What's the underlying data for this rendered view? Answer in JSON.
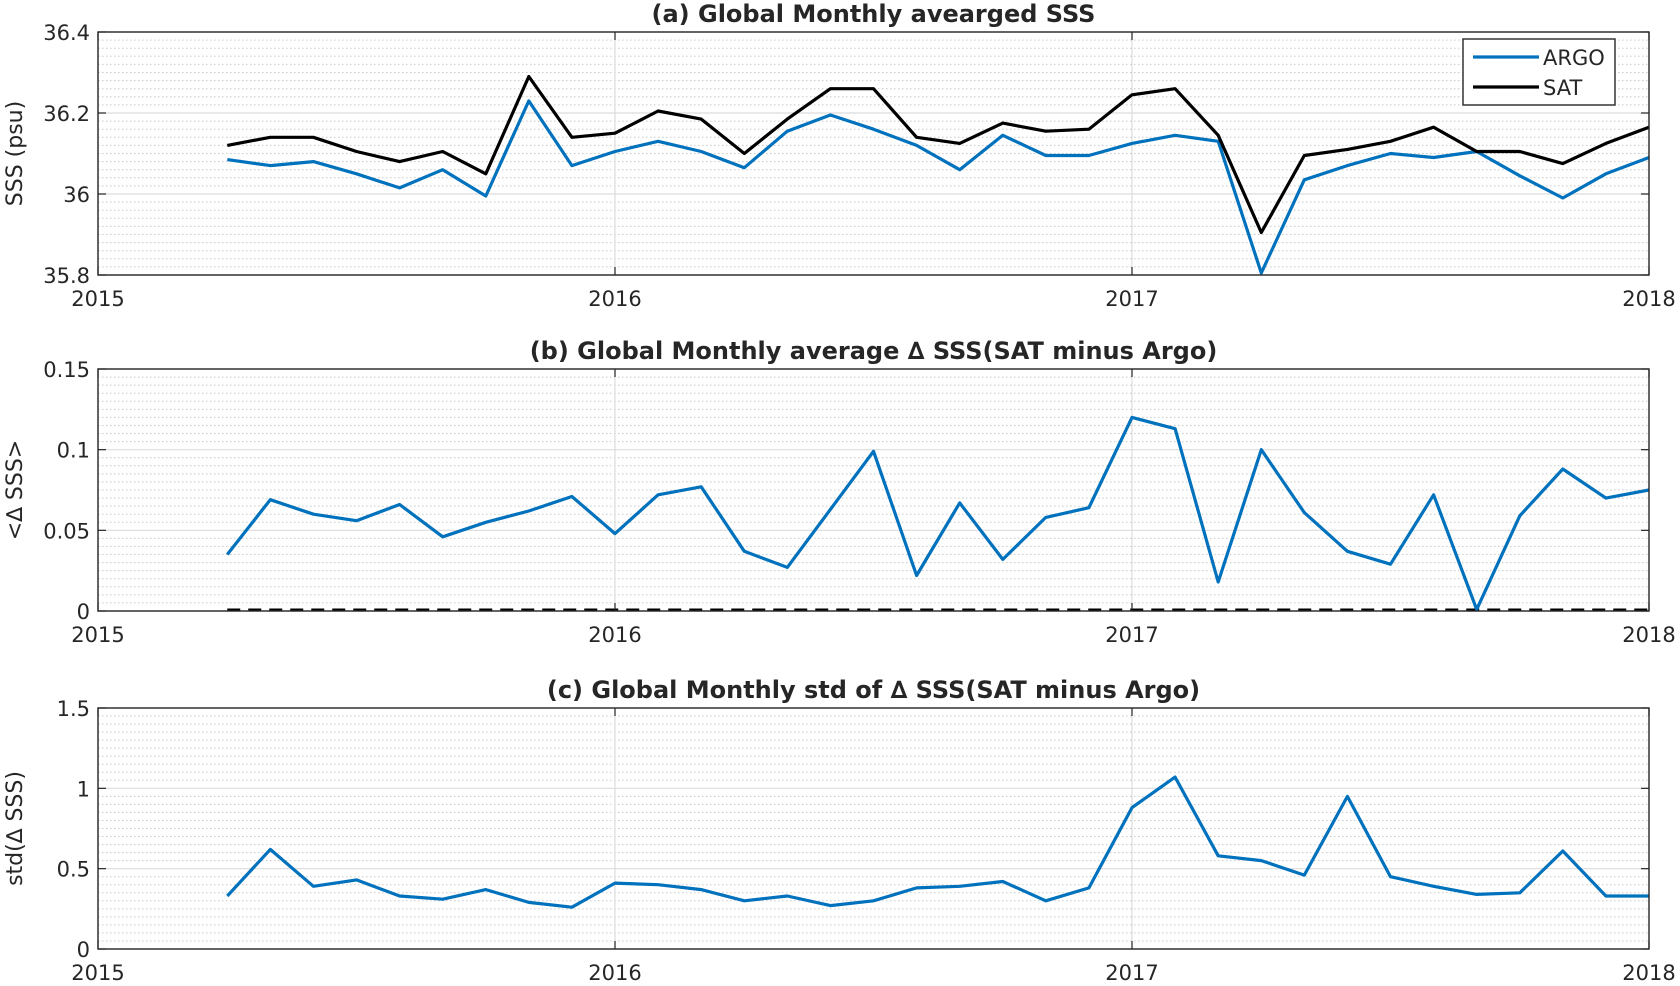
{
  "chart_data": [
    {
      "type": "line",
      "title": "(a) Global Monthly avearged SSS",
      "xlabel": "",
      "ylabel": "SSS (psu)",
      "x_axis": "date",
      "xlim": [
        "2015",
        "2018"
      ],
      "xticks": [
        "2015",
        "2016",
        "2017",
        "2018"
      ],
      "ylim": [
        35.8,
        36.4
      ],
      "yticks": [
        "35.8",
        "36",
        "36.2",
        "36.4"
      ],
      "yticks_values": [
        35.8,
        36.0,
        36.2,
        36.4
      ],
      "grid": true,
      "minor_grid": true,
      "legend_position": "top-right",
      "x": [
        "2015-04",
        "2015-05",
        "2015-06",
        "2015-07",
        "2015-08",
        "2015-09",
        "2015-10",
        "2015-11",
        "2015-12",
        "2016-01",
        "2016-02",
        "2016-03",
        "2016-04",
        "2016-05",
        "2016-06",
        "2016-07",
        "2016-08",
        "2016-09",
        "2016-10",
        "2016-11",
        "2016-12",
        "2017-01",
        "2017-02",
        "2017-03",
        "2017-04",
        "2017-05",
        "2017-06",
        "2017-07",
        "2017-08",
        "2017-09",
        "2017-10",
        "2017-11",
        "2017-12",
        "2018-01"
      ],
      "series": [
        {
          "name": "ARGO",
          "color": "#0072BD",
          "values": [
            36.085,
            36.07,
            36.08,
            36.05,
            36.015,
            36.06,
            35.995,
            36.23,
            36.07,
            36.105,
            36.13,
            36.105,
            36.065,
            36.155,
            36.195,
            36.16,
            36.12,
            36.06,
            36.145,
            36.095,
            36.095,
            36.125,
            36.145,
            36.13,
            35.805,
            36.035,
            36.07,
            36.1,
            36.09,
            36.105,
            36.045,
            35.99,
            36.05,
            36.09
          ]
        },
        {
          "name": "SAT",
          "color": "#000000",
          "values": [
            36.12,
            36.14,
            36.14,
            36.105,
            36.08,
            36.105,
            36.05,
            36.29,
            36.14,
            36.15,
            36.205,
            36.185,
            36.1,
            36.185,
            36.26,
            36.26,
            36.14,
            36.125,
            36.175,
            36.155,
            36.16,
            36.245,
            36.26,
            36.145,
            35.905,
            36.095,
            36.11,
            36.13,
            36.165,
            36.105,
            36.105,
            36.075,
            36.125,
            36.165
          ]
        }
      ]
    },
    {
      "type": "line",
      "title": "(b) Global Monthly average ∆ SSS(SAT minus Argo)",
      "xlabel": "",
      "ylabel": "<∆ SSS>",
      "x_axis": "date",
      "xlim": [
        "2015",
        "2018"
      ],
      "xticks": [
        "2015",
        "2016",
        "2017",
        "2018"
      ],
      "ylim": [
        0,
        0.15
      ],
      "yticks": [
        "0",
        "0.05",
        "0.1",
        "0.15"
      ],
      "yticks_values": [
        0,
        0.05,
        0.1,
        0.15
      ],
      "grid": true,
      "minor_grid": true,
      "reference_line": {
        "y": 0,
        "style": "dashed",
        "color": "#000000"
      },
      "x": [
        "2015-04",
        "2015-05",
        "2015-06",
        "2015-07",
        "2015-08",
        "2015-09",
        "2015-10",
        "2015-11",
        "2015-12",
        "2016-01",
        "2016-02",
        "2016-03",
        "2016-04",
        "2016-05",
        "2016-06",
        "2016-07",
        "2016-08",
        "2016-09",
        "2016-10",
        "2016-11",
        "2016-12",
        "2017-01",
        "2017-02",
        "2017-03",
        "2017-04",
        "2017-05",
        "2017-06",
        "2017-07",
        "2017-08",
        "2017-09",
        "2017-10",
        "2017-11",
        "2017-12",
        "2018-01"
      ],
      "series": [
        {
          "color": "#0072BD",
          "values": [
            0.035,
            0.069,
            0.06,
            0.056,
            0.066,
            0.046,
            0.055,
            0.062,
            0.071,
            0.048,
            0.072,
            0.077,
            0.037,
            0.027,
            0.063,
            0.099,
            0.022,
            0.067,
            0.032,
            0.058,
            0.064,
            0.12,
            0.113,
            0.018,
            0.1,
            0.061,
            0.037,
            0.029,
            0.072,
            0.001,
            0.059,
            0.088,
            0.07,
            0.075
          ]
        }
      ]
    },
    {
      "type": "line",
      "title": "(c) Global Monthly std of ∆ SSS(SAT minus Argo)",
      "xlabel": "",
      "ylabel": "std(∆ SSS)",
      "x_axis": "date",
      "xlim": [
        "2015",
        "2018"
      ],
      "xticks": [
        "2015",
        "2016",
        "2017",
        "2018"
      ],
      "ylim": [
        0,
        1.5
      ],
      "yticks": [
        "0",
        "0.5",
        "1",
        "1.5"
      ],
      "yticks_values": [
        0,
        0.5,
        1.0,
        1.5
      ],
      "grid": true,
      "minor_grid": true,
      "x": [
        "2015-04",
        "2015-05",
        "2015-06",
        "2015-07",
        "2015-08",
        "2015-09",
        "2015-10",
        "2015-11",
        "2015-12",
        "2016-01",
        "2016-02",
        "2016-03",
        "2016-04",
        "2016-05",
        "2016-06",
        "2016-07",
        "2016-08",
        "2016-09",
        "2016-10",
        "2016-11",
        "2016-12",
        "2017-01",
        "2017-02",
        "2017-03",
        "2017-04",
        "2017-05",
        "2017-06",
        "2017-07",
        "2017-08",
        "2017-09",
        "2017-10",
        "2017-11",
        "2017-12",
        "2018-01"
      ],
      "series": [
        {
          "color": "#0072BD",
          "values": [
            0.33,
            0.62,
            0.39,
            0.43,
            0.33,
            0.31,
            0.37,
            0.29,
            0.26,
            0.41,
            0.4,
            0.37,
            0.3,
            0.33,
            0.27,
            0.3,
            0.38,
            0.39,
            0.42,
            0.3,
            0.38,
            0.88,
            1.07,
            0.58,
            0.55,
            0.46,
            0.95,
            0.45,
            0.39,
            0.34,
            0.35,
            0.61,
            0.33,
            0.33
          ]
        }
      ]
    }
  ]
}
